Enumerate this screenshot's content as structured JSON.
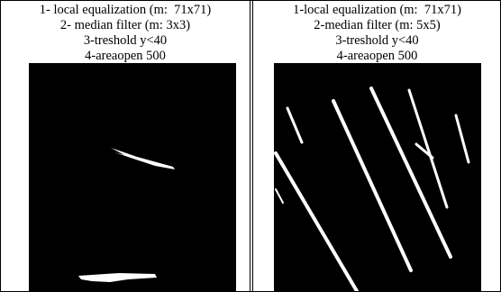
{
  "table": {
    "columns": [
      {
        "lines": [
          "1- local equalization (m:  71x71)",
          "2- median filter (m: 3x3)",
          "3-treshold y<40",
          "4-areaopen 500"
        ]
      },
      {
        "lines": [
          "1-local equalization (m:  71x71)",
          "2-median filter (m: 5x5)",
          "3-treshold y<40",
          "4-areaopen 500"
        ]
      }
    ]
  }
}
